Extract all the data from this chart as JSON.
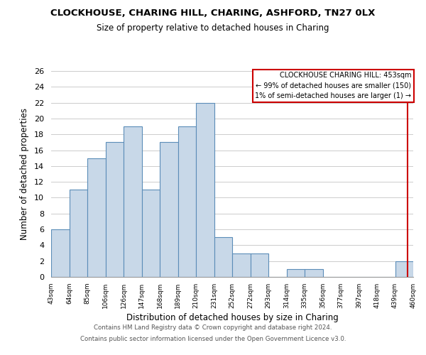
{
  "title": "CLOCKHOUSE, CHARING HILL, CHARING, ASHFORD, TN27 0LX",
  "subtitle": "Size of property relative to detached houses in Charing",
  "xlabel": "Distribution of detached houses by size in Charing",
  "ylabel": "Number of detached properties",
  "bar_color": "#c8d8e8",
  "bar_edge_color": "#5b8db8",
  "bins": [
    "43sqm",
    "64sqm",
    "85sqm",
    "106sqm",
    "126sqm",
    "147sqm",
    "168sqm",
    "189sqm",
    "210sqm",
    "231sqm",
    "252sqm",
    "272sqm",
    "293sqm",
    "314sqm",
    "335sqm",
    "356sqm",
    "377sqm",
    "397sqm",
    "418sqm",
    "439sqm",
    "460sqm"
  ],
  "values": [
    6,
    11,
    15,
    17,
    19,
    11,
    17,
    19,
    22,
    5,
    3,
    3,
    0,
    1,
    1,
    0,
    0,
    0,
    0,
    2
  ],
  "ylim": [
    0,
    26
  ],
  "yticks": [
    0,
    2,
    4,
    6,
    8,
    10,
    12,
    14,
    16,
    18,
    20,
    22,
    24,
    26
  ],
  "annotation_title": "CLOCKHOUSE CHARING HILL: 453sqm",
  "annotation_line1": "← 99% of detached houses are smaller (150)",
  "annotation_line2": "1% of semi-detached houses are larger (1) →",
  "footer_line1": "Contains HM Land Registry data © Crown copyright and database right 2024.",
  "footer_line2": "Contains public sector information licensed under the Open Government Licence v3.0.",
  "background_color": "#ffffff",
  "grid_color": "#cccccc",
  "red_line_color": "#cc0000",
  "annotation_box_edge_color": "#cc0000",
  "bin_values_num": [
    43,
    64,
    85,
    106,
    126,
    147,
    168,
    189,
    210,
    231,
    252,
    272,
    293,
    314,
    335,
    356,
    377,
    397,
    418,
    439,
    460
  ],
  "prop_val": 453
}
